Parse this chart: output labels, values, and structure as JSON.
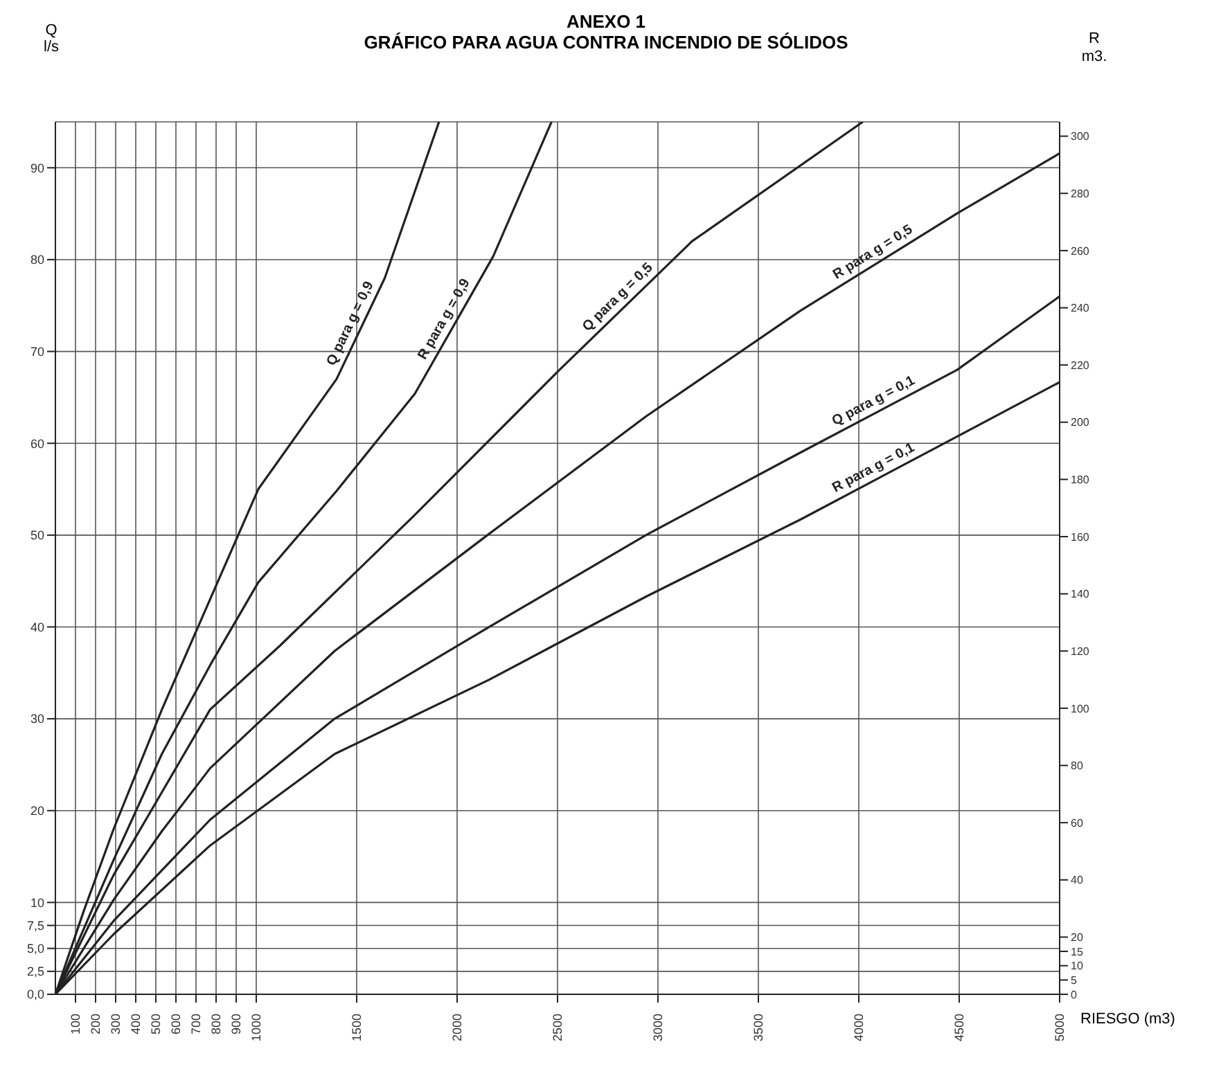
{
  "chart_data": {
    "type": "line",
    "title": "ANEXO 1",
    "subtitle": "GRÁFICO PARA AGUA CONTRA INCENDIO DE SÓLIDOS",
    "xlabel": "RIESGO (m3)",
    "ylabel": "Q l/s",
    "y2label": "R m3.",
    "xlim": [
      0,
      5000
    ],
    "xticks": [
      100,
      200,
      300,
      400,
      500,
      600,
      700,
      800,
      900,
      1000,
      1500,
      2000,
      2500,
      3000,
      3500,
      4000,
      4500,
      5000
    ],
    "ylim": [
      0,
      95
    ],
    "yticks": [
      {
        "value": 0,
        "label": "0,0"
      },
      {
        "value": 2.5,
        "label": "2,5"
      },
      {
        "value": 5,
        "label": "5,0"
      },
      {
        "value": 7.5,
        "label": "7,5"
      },
      10,
      20,
      30,
      40,
      50,
      60,
      70,
      80,
      90
    ],
    "y2lim": [
      0,
      305
    ],
    "y2ticks": [
      0,
      5,
      10,
      15,
      20,
      40,
      60,
      80,
      100,
      120,
      140,
      160,
      180,
      200,
      220,
      240,
      260,
      280,
      300
    ],
    "grid": true,
    "marker": "none",
    "line_style": "solid",
    "series": [
      {
        "name": "Q para g = 0,9",
        "color": "#222222",
        "x": [
          0,
          140,
          290,
          530,
          770,
          1010,
          1400,
          1640,
          1910
        ],
        "values": [
          0,
          9,
          18,
          31,
          43,
          55,
          67,
          78,
          95
        ]
      },
      {
        "name": "R para g = 0,9",
        "color": "#222222",
        "axis": "y2",
        "x": [
          0,
          290,
          530,
          770,
          1010,
          1400,
          1790,
          2180,
          2470
        ],
        "values": [
          0,
          47,
          84,
          115,
          144,
          176,
          210,
          258,
          305
        ]
      },
      {
        "name": "Q para g = 0,5",
        "color": "#222222",
        "x": [
          0,
          290,
          530,
          770,
          1120,
          1780,
          2510,
          3170,
          4020
        ],
        "values": [
          0,
          13,
          22,
          31,
          38,
          52,
          68,
          82,
          95
        ]
      },
      {
        "name": "R para g = 0,5",
        "color": "#222222",
        "axis": "y2",
        "x": [
          0,
          290,
          530,
          770,
          1390,
          2160,
          2940,
          3710,
          4490,
          5000
        ],
        "values": [
          0,
          33,
          57,
          79,
          120,
          161,
          202,
          239,
          273,
          294
        ]
      },
      {
        "name": "Q para g = 0,1",
        "color": "#222222",
        "x": [
          0,
          290,
          770,
          1390,
          2160,
          2940,
          3710,
          4490,
          5000
        ],
        "values": [
          0,
          8,
          19,
          30,
          40,
          50,
          59,
          68,
          76
        ]
      },
      {
        "name": "R para g = 0,1",
        "color": "#222222",
        "axis": "y2",
        "x": [
          0,
          290,
          770,
          1390,
          2160,
          2940,
          3710,
          4490,
          5000
        ],
        "values": [
          0,
          21,
          52,
          84,
          110,
          139,
          166,
          195,
          214
        ]
      }
    ]
  }
}
